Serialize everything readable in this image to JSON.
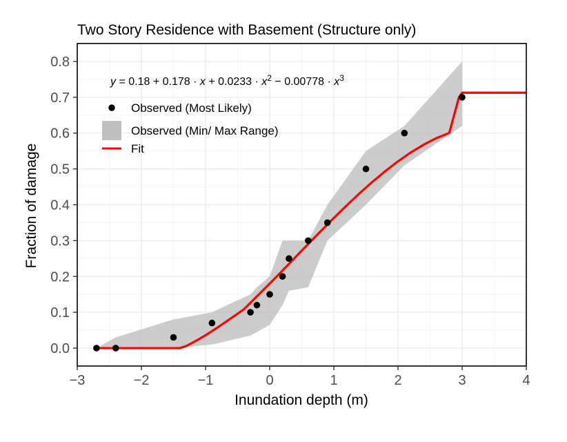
{
  "chart_data": {
    "type": "line",
    "title": "Two Story Residence with Basement (Structure only)",
    "xlabel": "Inundation depth (m)",
    "ylabel": "Fraction of damage",
    "xlim": [
      -3,
      4
    ],
    "ylim": [
      -0.05,
      0.85
    ],
    "x_ticks": [
      -3,
      -2,
      -1,
      0,
      1,
      2,
      3,
      4
    ],
    "x_tick_labels": [
      "−3",
      "−2",
      "−1",
      "0",
      "1",
      "2",
      "3",
      "4"
    ],
    "y_ticks": [
      0,
      0.1,
      0.2,
      0.3,
      0.4,
      0.5,
      0.6,
      0.7,
      0.8
    ],
    "y_tick_labels": [
      "0.0",
      "0.1",
      "0.2",
      "0.3",
      "0.4",
      "0.5",
      "0.6",
      "0.7",
      "0.8"
    ],
    "grid": true,
    "legend_position": "top-left",
    "equation": {
      "lhs": "y",
      "terms": [
        "0.18",
        "0.178",
        "0.0233",
        "0.00778"
      ],
      "powers": [
        "2",
        "3"
      ]
    },
    "observed": {
      "name": "Observed (Most Likely)",
      "x": [
        -2.7,
        -2.4,
        -1.5,
        -0.9,
        -0.3,
        -0.2,
        0.0,
        0.2,
        0.3,
        0.6,
        0.9,
        1.5,
        2.1,
        3.0
      ],
      "y": [
        0.0,
        0.0,
        0.03,
        0.07,
        0.1,
        0.12,
        0.15,
        0.2,
        0.25,
        0.3,
        0.35,
        0.5,
        0.6,
        0.7
      ]
    },
    "range": {
      "name": "Observed (Min/ Max Range)",
      "x": [
        -2.7,
        -2.4,
        -1.5,
        -0.9,
        -0.3,
        -0.2,
        0.0,
        0.2,
        0.3,
        0.6,
        0.9,
        1.5,
        2.1,
        3.0
      ],
      "min": [
        0.0,
        0.0,
        0.0,
        0.01,
        0.035,
        0.045,
        0.065,
        0.12,
        0.16,
        0.17,
        0.3,
        0.4,
        0.51,
        0.62
      ],
      "max": [
        0.0,
        0.03,
        0.08,
        0.1,
        0.15,
        0.17,
        0.2,
        0.3,
        0.3,
        0.3,
        0.4,
        0.55,
        0.62,
        0.8
      ]
    },
    "fit": {
      "name": "Fit",
      "x": [
        -2.7,
        -2.4,
        -2.0,
        -1.7,
        -1.5,
        -1.45,
        -1.4,
        -1.3,
        -1.2,
        -1.1,
        -1.0,
        -0.9,
        -0.8,
        -0.6,
        -0.4,
        -0.2,
        0.0,
        0.2,
        0.4,
        0.6,
        0.8,
        1.0,
        1.2,
        1.4,
        1.6,
        1.8,
        2.0,
        2.2,
        2.4,
        2.6,
        2.8,
        2.95,
        3.0,
        3.5,
        4.0
      ],
      "y": [
        0.0,
        0.0,
        0.0,
        0.0,
        0.0,
        0.0,
        0.0,
        0.0059,
        0.0152,
        0.0253,
        0.036,
        0.0473,
        0.0591,
        0.0836,
        0.1087,
        0.1443,
        0.18,
        0.2165,
        0.2535,
        0.2904,
        0.3271,
        0.3631,
        0.3981,
        0.4318,
        0.4637,
        0.4936,
        0.5211,
        0.546,
        0.5677,
        0.586,
        0.6006,
        0.7,
        0.7127,
        0.7127,
        0.7127
      ],
      "color": "#ff0000"
    },
    "colors": {
      "points": "#000000",
      "ribbon": "#bfbfbf",
      "fit": "#ff0000",
      "grid_major": "#ebebeb",
      "grid_minor": "#f5f5f5"
    }
  }
}
